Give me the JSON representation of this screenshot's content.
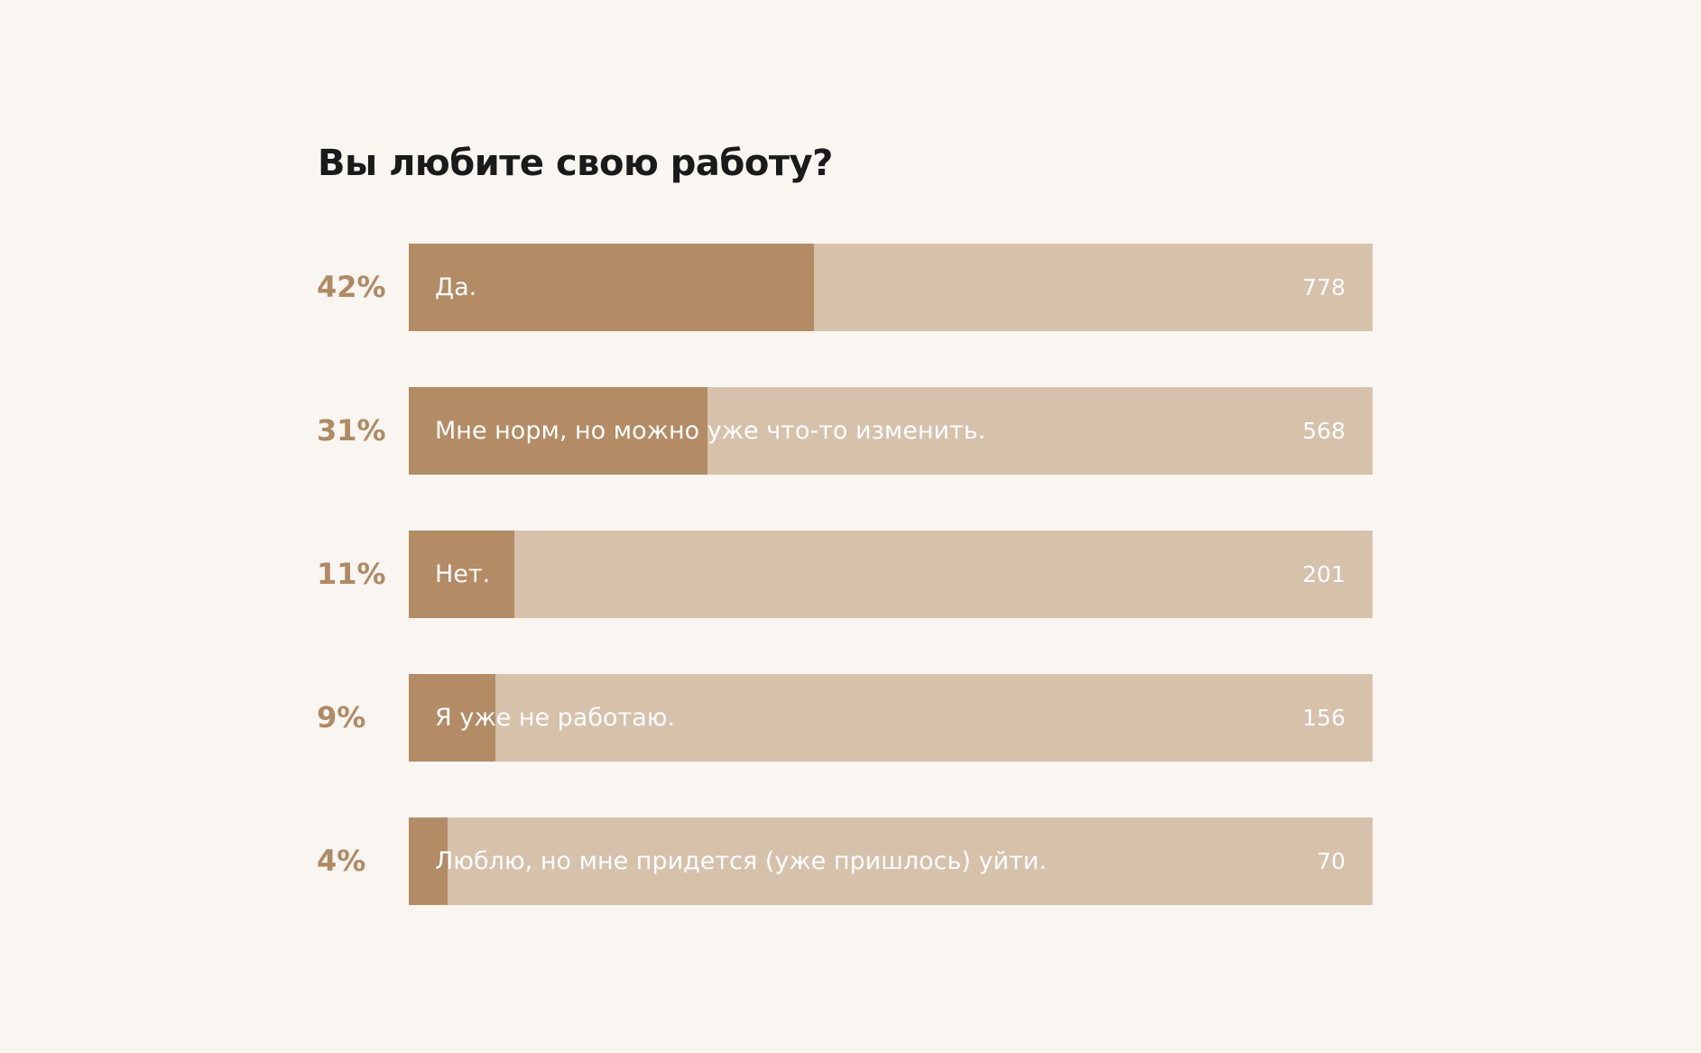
{
  "poll": {
    "title": "Вы любите свою работу?",
    "options": [
      {
        "percent": 42,
        "percent_label": "42%",
        "label": "Да.",
        "count": 778
      },
      {
        "percent": 31,
        "percent_label": "31%",
        "label": "Мне норм, но можно уже что-то изменить.",
        "count": 568
      },
      {
        "percent": 11,
        "percent_label": "11%",
        "label": "Нет.",
        "count": 201
      },
      {
        "percent": 9,
        "percent_label": "9%",
        "label": "Я уже не работаю.",
        "count": 156
      },
      {
        "percent": 4,
        "percent_label": "4%",
        "label": "Люблю, но мне придется (уже пришлось) уйти.",
        "count": 70
      }
    ]
  }
}
